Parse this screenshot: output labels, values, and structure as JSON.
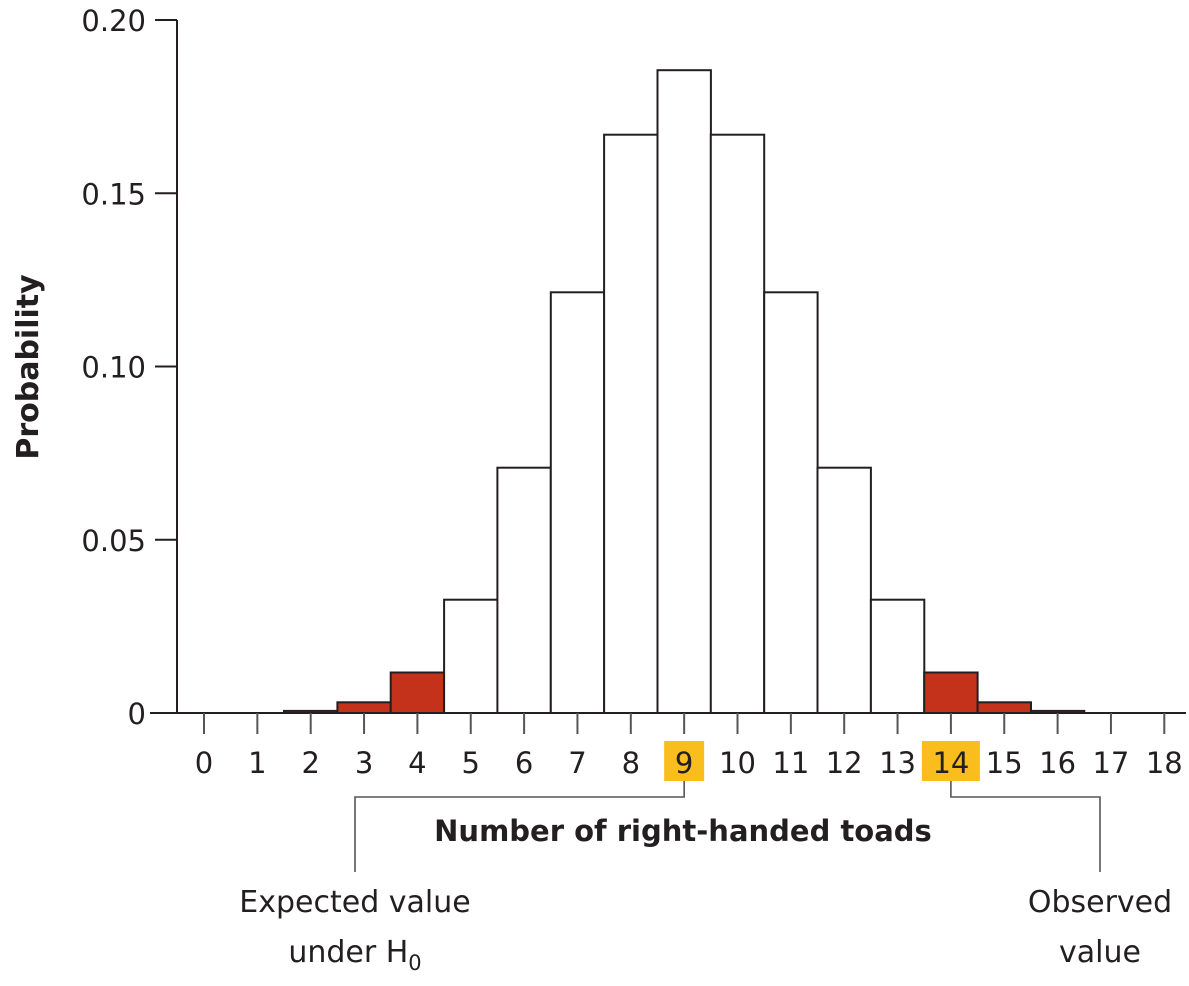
{
  "chart_data": {
    "type": "bar",
    "title": "",
    "xlabel": "Number of right-handed toads",
    "ylabel": "Probability",
    "ylim": [
      0,
      0.2
    ],
    "yticks": [
      "0",
      "0.05",
      "0.10",
      "0.15",
      "0.20"
    ],
    "ytick_values": [
      0,
      0.05,
      0.1,
      0.15,
      0.2
    ],
    "categories": [
      "0",
      "1",
      "2",
      "3",
      "4",
      "5",
      "6",
      "7",
      "8",
      "9",
      "10",
      "11",
      "12",
      "13",
      "14",
      "15",
      "16",
      "17",
      "18"
    ],
    "values": [
      4e-06,
      7e-05,
      0.0006,
      0.0031,
      0.0117,
      0.0327,
      0.0708,
      0.1214,
      0.1669,
      0.1855,
      0.1669,
      0.1214,
      0.0708,
      0.0327,
      0.0117,
      0.0031,
      0.0006,
      7e-05,
      4e-06
    ],
    "highlighted_bars": [
      "0",
      "1",
      "2",
      "3",
      "4",
      "14",
      "15",
      "16",
      "17",
      "18"
    ],
    "highlighted_ticks": [
      "9",
      "14"
    ],
    "annotations": [
      {
        "target": "9",
        "line1": "Expected value",
        "line2_main": "under H",
        "line2_sub": "0"
      },
      {
        "target": "14",
        "line1": "Observed",
        "line2_main": "value",
        "line2_sub": ""
      }
    ],
    "grid": false,
    "legend": "none"
  },
  "colors": {
    "tail_fill": "#c4321b",
    "bar_fill": "#ffffff",
    "bar_stroke": "#231f20",
    "highlight": "#f9bd1e"
  }
}
